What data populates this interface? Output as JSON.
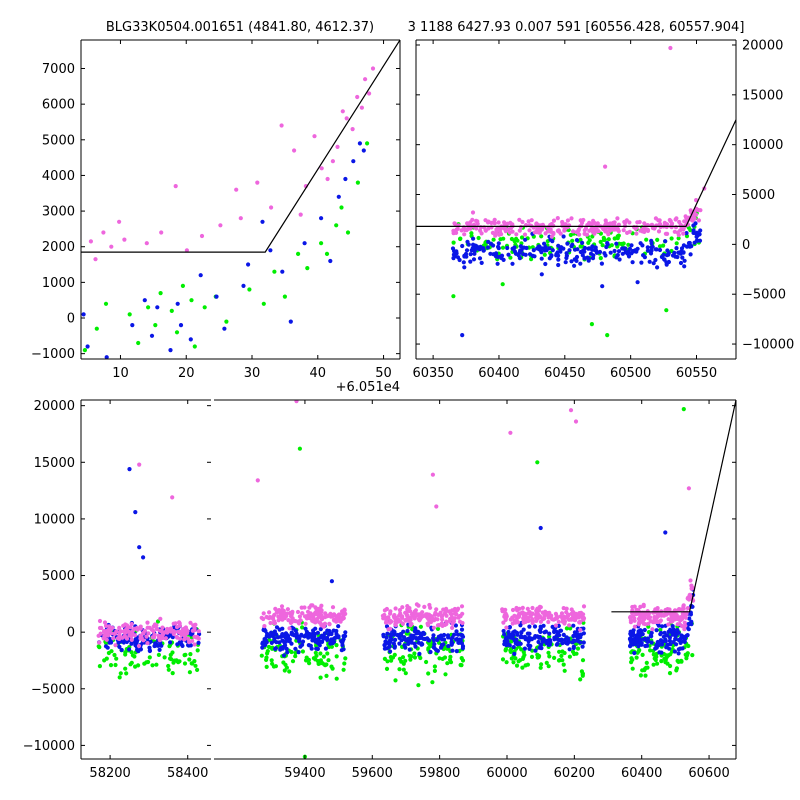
{
  "title_left": "BLG33K0504.001651 (4841.80, 4612.37)",
  "title_right": "3 1188 6427.93 0.007 591 [60556.428, 60557.904]",
  "colors": {
    "series_a": "#00ee00",
    "series_b": "#0a16e6",
    "series_c": "#ee66dd",
    "model": "#000000"
  },
  "chart_data": [
    {
      "type": "scatter",
      "panel": "top-left",
      "xlim": [
        60514,
        60562.5
      ],
      "ylim": [
        -1150,
        7800
      ],
      "x_ticks": [
        60520,
        60530,
        60540,
        60550,
        60560
      ],
      "x_tick_labels": [
        "10",
        "20",
        "30",
        "40",
        "50"
      ],
      "y_ticks": [
        -1000,
        0,
        1000,
        2000,
        3000,
        4000,
        5000,
        6000,
        7000
      ],
      "y_tick_labels": [
        "−1000",
        "0",
        "1000",
        "2000",
        "3000",
        "4000",
        "5000",
        "6000",
        "7000"
      ],
      "x_offset_label": "+6.051e4",
      "model_line": {
        "x": [
          60514,
          60542,
          60562.5
        ],
        "y": [
          1850,
          1850,
          7800
        ]
      },
      "series": [
        {
          "color_key": "series_c",
          "x": [
            60515.5,
            60516.2,
            60517.4,
            60518.6,
            60519.8,
            60520.6,
            60524.0,
            60526.2,
            60528.4,
            60530.1,
            60532.4,
            60535.2,
            60537.6,
            60538.3,
            60540.8,
            60542.9,
            60544.5,
            60546.4,
            60547.4,
            60548.2,
            60549.5,
            60550.6,
            60551.5,
            60552.3,
            60553.0,
            60553.8,
            60554.4,
            60555.3,
            60556.0,
            60556.7,
            60557.2,
            60557.8,
            60558.4
          ],
          "y": [
            2150,
            1650,
            2400,
            2000,
            2700,
            2200,
            2100,
            2400,
            3700,
            1900,
            2300,
            2600,
            3600,
            2800,
            3800,
            3100,
            5400,
            4700,
            2900,
            3700,
            5100,
            4200,
            3900,
            4400,
            4800,
            5800,
            5600,
            5300,
            6200,
            5900,
            6700,
            6300,
            7000
          ]
        },
        {
          "color_key": "series_a",
          "x": [
            60514.6,
            60516.4,
            60517.8,
            60521.4,
            60522.7,
            60524.2,
            60525.3,
            60526.1,
            60527.8,
            60528.6,
            60529.5,
            60530.8,
            60531.3,
            60532.8,
            60534.5,
            60536.1,
            60539.6,
            60541.8,
            60543.4,
            60545.0,
            60547.0,
            60548.4,
            60550.5,
            60551.4,
            60552.8,
            60553.6,
            60554.6,
            60556.1,
            60557.5
          ],
          "y": [
            -900,
            -300,
            400,
            100,
            -700,
            300,
            -200,
            700,
            200,
            -400,
            900,
            500,
            -800,
            300,
            600,
            -100,
            800,
            400,
            1300,
            600,
            1800,
            1400,
            2100,
            1800,
            2600,
            3100,
            2400,
            3800,
            4900
          ]
        },
        {
          "color_key": "series_b",
          "x": [
            60514.4,
            60515.0,
            60517.9,
            60521.8,
            60523.7,
            60524.8,
            60525.6,
            60527.6,
            60528.7,
            60529.2,
            60530.7,
            60532.2,
            60534.6,
            60535.8,
            60538.7,
            60539.4,
            60541.6,
            60542.8,
            60544.6,
            60545.9,
            60548.0,
            60550.5,
            60551.9,
            60553.2,
            60554.2,
            60555.4,
            60556.4,
            60557.0
          ],
          "y": [
            100,
            -800,
            -1100,
            -200,
            500,
            -500,
            300,
            -900,
            400,
            -200,
            -600,
            1200,
            600,
            -300,
            900,
            1500,
            2700,
            1900,
            1300,
            -100,
            2100,
            2800,
            1600,
            3400,
            3900,
            4400,
            4900,
            4700
          ]
        }
      ]
    },
    {
      "type": "scatter",
      "panel": "top-right",
      "xlim": [
        60337,
        60580
      ],
      "ylim": [
        -11500,
        20500
      ],
      "x_ticks": [
        60350,
        60400,
        60450,
        60500,
        60550
      ],
      "x_tick_labels": [
        "60350",
        "60400",
        "60450",
        "60500",
        "60550"
      ],
      "y_ticks": [
        -10000,
        -5000,
        0,
        5000,
        10000,
        15000,
        20000
      ],
      "y_tick_labels": [
        "−10000",
        "−5000",
        "0",
        "5000",
        "10000",
        "15000",
        "20000"
      ],
      "model_line": {
        "x": [
          60337,
          60542,
          60580
        ],
        "y": [
          1800,
          1800,
          12500
        ]
      },
      "series": [
        {
          "color_key": "series_c",
          "x": [
            60380.3,
            60420.7,
            60455.1,
            60480.6,
            60510.4,
            60530.2,
            60555.9
          ],
          "y": [
            3200,
            1900,
            2600,
            7800,
            2100,
            19700,
            5600
          ]
        },
        {
          "color_key": "series_a",
          "x": [
            60365.4,
            60402.8,
            60470.6,
            60482.2,
            60527.1
          ],
          "y": [
            -5200,
            -4000,
            -8000,
            -9100,
            -6600
          ]
        },
        {
          "color_key": "series_b",
          "x": [
            60372.1,
            60432.5,
            60478.4,
            60505.3,
            60540.7
          ],
          "y": [
            -9100,
            -3000,
            -4200,
            -3800,
            -2200
          ]
        }
      ],
      "clouds": [
        {
          "color_key": "series_a",
          "count": 140,
          "x_range": [
            60365,
            60553
          ],
          "y_center": 0,
          "y_spread": 1500,
          "seed": 11
        },
        {
          "color_key": "series_b",
          "count": 260,
          "x_range": [
            60365,
            60553
          ],
          "y_center": -800,
          "y_spread": 1200,
          "seed": 12
        },
        {
          "color_key": "series_c",
          "count": 300,
          "x_range": [
            60365,
            60553
          ],
          "y_center": 1700,
          "y_spread": 800,
          "seed": 13
        }
      ]
    },
    {
      "type": "scatter",
      "panel": "bottom",
      "broken_x_axis": true,
      "ylim": [
        -11200,
        20500
      ],
      "y_ticks": [
        -10000,
        -5000,
        0,
        5000,
        10000,
        15000,
        20000
      ],
      "y_tick_labels": [
        "−10000",
        "−5000",
        "0",
        "5000",
        "10000",
        "15000",
        "20000"
      ],
      "segment_1": {
        "xlim": [
          58125,
          58460
        ],
        "x_ticks": [
          58200,
          58400
        ],
        "x_tick_labels": [
          "58200",
          "58400"
        ]
      },
      "segment_2": {
        "xlim": [
          59130,
          60680
        ],
        "x_ticks": [
          59400,
          59600,
          59800,
          60000,
          60200,
          60400,
          60600
        ],
        "x_tick_labels": [
          "59400",
          "59600",
          "59800",
          "60000",
          "60200",
          "60400",
          "60600"
        ]
      },
      "model_line": {
        "x": [
          60310,
          60542,
          60680
        ],
        "y": [
          1800,
          1800,
          20500
        ]
      },
      "seasons": [
        {
          "segment": 1,
          "x_range": [
            58170,
            58430
          ]
        },
        {
          "segment": 2,
          "x_range": [
            59270,
            59520
          ]
        },
        {
          "segment": 2,
          "x_range": [
            59630,
            59870
          ]
        },
        {
          "segment": 2,
          "x_range": [
            59985,
            60230
          ]
        },
        {
          "segment": 2,
          "x_range": [
            60365,
            60553
          ]
        }
      ],
      "season_clouds": [
        {
          "color_key": "series_a",
          "count": 90,
          "y_center": -1800,
          "y_spread": 2200
        },
        {
          "color_key": "series_b",
          "count": 150,
          "y_center": -500,
          "y_spread": 1100
        },
        {
          "color_key": "series_c",
          "count": 160,
          "y_center": 1400,
          "y_spread": 900
        }
      ],
      "outliers": [
        {
          "color_key": "series_b",
          "x": [
            58250,
            58265,
            58275,
            58285,
            59480,
            60100,
            60470
          ],
          "y": [
            14400,
            10600,
            7500,
            6600,
            4500,
            9200,
            8800
          ]
        },
        {
          "color_key": "series_c",
          "x": [
            58275,
            58360,
            59260,
            59375,
            59780,
            59790,
            60010,
            60190,
            60205,
            60540
          ],
          "y": [
            14800,
            11900,
            13400,
            20400,
            13900,
            11100,
            17600,
            19600,
            18600,
            12700
          ]
        },
        {
          "color_key": "series_a",
          "x": [
            59385,
            59400,
            60090,
            60525
          ],
          "y": [
            16200,
            -11000,
            15000,
            19700
          ]
        }
      ]
    }
  ]
}
